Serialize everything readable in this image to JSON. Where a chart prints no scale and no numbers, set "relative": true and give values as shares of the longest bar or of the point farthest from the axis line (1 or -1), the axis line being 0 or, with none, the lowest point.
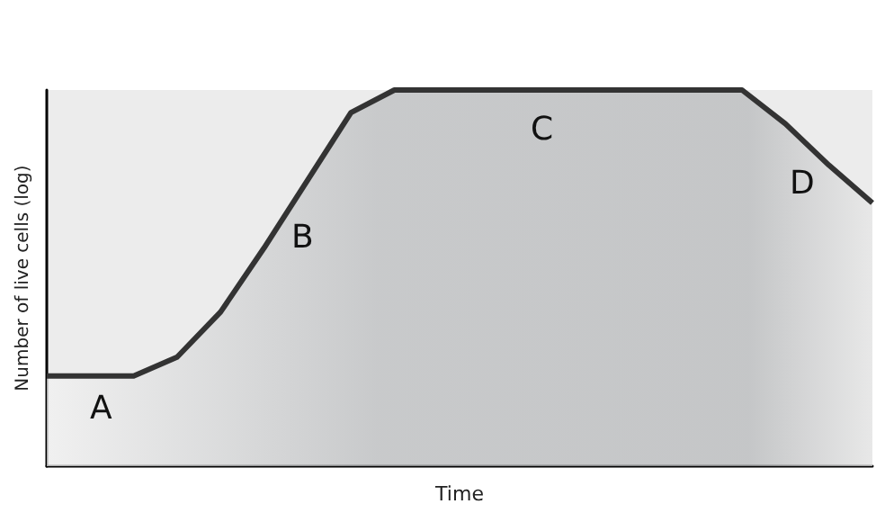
{
  "chart_data": {
    "type": "area",
    "relative": true,
    "xlabel": "Time",
    "ylabel": "Number of live cells (log)",
    "categories": [
      null,
      null,
      null,
      null,
      null,
      null,
      null,
      null,
      null,
      null,
      null,
      null,
      null,
      null,
      null,
      null,
      null,
      null,
      null,
      null
    ],
    "series": [
      {
        "color": "#333333",
        "values": [
          0.24,
          0.24,
          0.24,
          0.29,
          0.41,
          0.58,
          0.76,
          0.94,
          1,
          1,
          1,
          1,
          1,
          1,
          1,
          1,
          1,
          0.91,
          0.8,
          0.7
        ]
      }
    ],
    "annotations": [
      "A",
      "B",
      "C",
      "D"
    ],
    "line_style": "solid"
  }
}
